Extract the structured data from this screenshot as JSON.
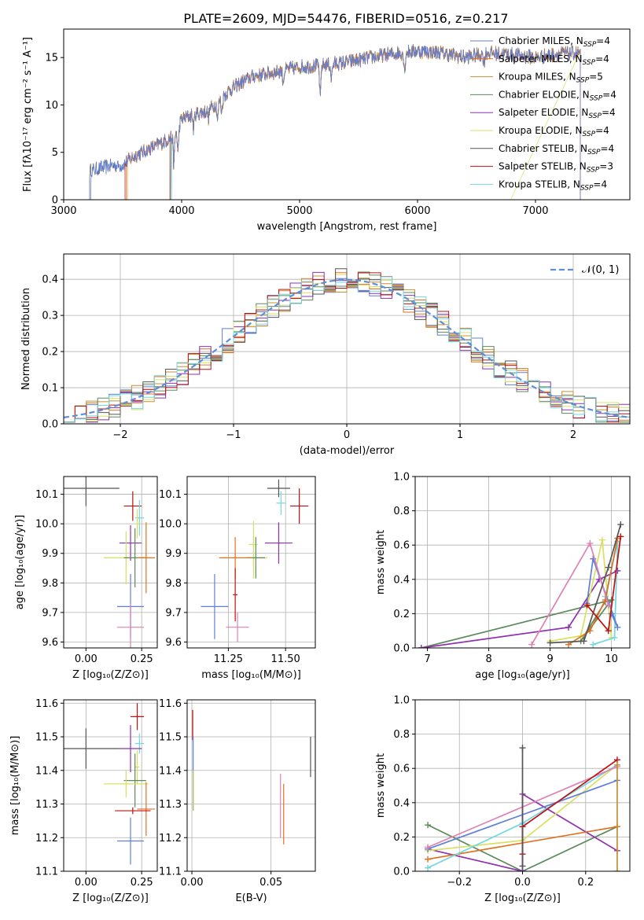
{
  "title": "PLATE=2609, MJD=54476, FIBERID=0516, z=0.217",
  "colors": {
    "cm": "#5f7fd8",
    "sm": "#e07020",
    "km": "#c89030",
    "ce": "#5b8a5b",
    "se": "#9030b0",
    "ke": "#d8e060",
    "cs": "#555555",
    "ss": "#c01010",
    "ks": "#70d8e0",
    "pink": "#e080b0",
    "gauss": "#5f8fd8"
  },
  "chart_data": [
    {
      "type": "line",
      "id": "spectrum",
      "xlabel": "wavelength [Angstrom, rest frame]",
      "ylabel": "Flux [fλ10⁻¹⁷ erg cm⁻² s⁻¹ A⁻¹]",
      "xlim": [
        3000,
        7800
      ],
      "ylim": [
        0,
        18
      ],
      "xticks": [
        3000,
        4000,
        5000,
        6000,
        7000
      ],
      "yticks": [
        0,
        5,
        10,
        15
      ],
      "xtick_labels": [
        "3000",
        "4000",
        "5000",
        "6000",
        "7000"
      ],
      "ytick_labels": [
        "0",
        "5",
        "10",
        "15"
      ],
      "legend": [
        {
          "label": "Chabrier MILES, N",
          "sub": "SSP",
          "tail": "=4",
          "color": "cm"
        },
        {
          "label": "Salpeter MILES, N",
          "sub": "SSP",
          "tail": "=4",
          "color": "sm"
        },
        {
          "label": "Kroupa MILES, N",
          "sub": "SSP",
          "tail": "=5",
          "color": "km"
        },
        {
          "label": "Chabrier ELODIE, N",
          "sub": "SSP",
          "tail": "=4",
          "color": "ce"
        },
        {
          "label": "Salpeter ELODIE, N",
          "sub": "SSP",
          "tail": "=4",
          "color": "se"
        },
        {
          "label": "Kroupa ELODIE, N",
          "sub": "SSP",
          "tail": "=4",
          "color": "ke"
        },
        {
          "label": "Chabrier STELIB, N",
          "sub": "SSP",
          "tail": "=4",
          "color": "cs"
        },
        {
          "label": "Salpeter STELIB, N",
          "sub": "SSP",
          "tail": "=3",
          "color": "ss"
        },
        {
          "label": "Kroupa STELIB, N",
          "sub": "SSP",
          "tail": "=4",
          "color": "ks"
        }
      ],
      "continuum": {
        "x": [
          3220,
          3300,
          3400,
          3500,
          3600,
          3700,
          3800,
          3900,
          3950,
          4000,
          4100,
          4200,
          4300,
          4400,
          4500,
          4600,
          4800,
          5000,
          5200,
          5400,
          5600,
          5800,
          6000,
          6200,
          6400,
          6600,
          6800,
          7000,
          7200,
          7380
        ],
        "y": [
          3.0,
          3.3,
          3.6,
          3.7,
          4.6,
          5.2,
          5.8,
          6.5,
          7.0,
          8.5,
          9.0,
          9.3,
          10.2,
          11.5,
          12.3,
          13.0,
          13.5,
          14.0,
          14.2,
          14.5,
          15.0,
          15.4,
          15.7,
          15.5,
          15.0,
          15.5,
          15.3,
          15.0,
          15.4,
          15.5
        ]
      },
      "start_x": {
        "cs": 3220,
        "cm": 3230,
        "ss": 3520,
        "sm": 3530,
        "km": 3540,
        "ce": 3900,
        "se": 3905,
        "ke": 3910,
        "ks": 3915
      }
    },
    {
      "type": "bar",
      "id": "residuals",
      "xlabel": "(data-model)/error",
      "ylabel": "Normed distribution",
      "xlim": [
        -2.5,
        2.5
      ],
      "ylim": [
        0,
        0.47
      ],
      "xticks": [
        -2,
        -1,
        0,
        1,
        2
      ],
      "yticks": [
        0,
        0.1,
        0.2,
        0.3,
        0.4
      ],
      "xtick_labels": [
        "−2",
        "−1",
        "0",
        "1",
        "2"
      ],
      "ytick_labels": [
        "0.0",
        "0.1",
        "0.2",
        "0.3",
        "0.4"
      ],
      "bin_width": 0.1,
      "legend_label": "𝒩(0, 1)",
      "series": [
        "cm",
        "sm",
        "km",
        "ce",
        "se",
        "ke",
        "cs",
        "ss",
        "ks"
      ]
    },
    {
      "type": "scatter",
      "id": "age_vs_Z",
      "xlabel": "Z [log₁₀(Z/Z⊙)]",
      "ylabel": "age  [log₁₀(age/yr)]",
      "xlim": [
        -0.1,
        0.32
      ],
      "ylim": [
        9.58,
        10.16
      ],
      "xticks": [
        0.0,
        0.25
      ],
      "xtick_labels": [
        "0.00",
        "0.25"
      ],
      "yticks": [
        9.6,
        9.7,
        9.8,
        9.9,
        10.0,
        10.1
      ],
      "ytick_labels": [
        "9.6",
        "9.7",
        "9.8",
        "9.9",
        "10.0",
        "10.1"
      ],
      "points": [
        {
          "c": "cs",
          "x": 0.0,
          "xe": 0.15,
          "y": 10.12,
          "ye": 0.06
        },
        {
          "c": "ss",
          "x": 0.21,
          "xe": 0.04,
          "y": 10.06,
          "ye": 0.05
        },
        {
          "c": "ks",
          "x": 0.24,
          "xe": 0.02,
          "y": 10.02,
          "ye": 0.06
        },
        {
          "c": "ke",
          "x": 0.23,
          "xe": 0.01,
          "y": 10.0,
          "ye": 0.05
        },
        {
          "c": "se",
          "x": 0.2,
          "xe": 0.05,
          "y": 9.935,
          "ye": 0.06
        },
        {
          "c": "ke",
          "x": 0.18,
          "xe": 0.1,
          "y": 9.885,
          "ye": 0.09
        },
        {
          "c": "ce",
          "x": 0.22,
          "xe": 0.05,
          "y": 9.885,
          "ye": 0.1
        },
        {
          "c": "sm",
          "x": 0.27,
          "xe": 0.04,
          "y": 9.885,
          "ye": 0.12
        },
        {
          "c": "cm",
          "x": 0.2,
          "xe": 0.06,
          "y": 9.72,
          "ye": 0.11
        },
        {
          "c": "pink",
          "x": 0.2,
          "xe": 0.06,
          "y": 9.65,
          "ye": 0.08
        }
      ]
    },
    {
      "type": "scatter",
      "id": "age_vs_mass",
      "xlabel": "mass [log₁₀(M/M⊙)]",
      "ylabel": "",
      "xlim": [
        11.07,
        11.63
      ],
      "ylim": [
        9.58,
        10.16
      ],
      "xticks": [
        11.25,
        11.5
      ],
      "xtick_labels": [
        "11.25",
        "11.50"
      ],
      "yticks": [
        9.6,
        9.7,
        9.8,
        9.9,
        10.0,
        10.1
      ],
      "ytick_labels": [
        "9.6",
        "9.7",
        "9.8",
        "9.9",
        "10.0",
        "10.1"
      ],
      "points": [
        {
          "c": "cs",
          "x": 11.47,
          "xe": 0.05,
          "y": 10.12,
          "ye": 0.03
        },
        {
          "c": "ks",
          "x": 11.48,
          "xe": 0.02,
          "y": 10.07,
          "ye": 0.04
        },
        {
          "c": "ss",
          "x": 11.56,
          "xe": 0.04,
          "y": 10.06,
          "ye": 0.06
        },
        {
          "c": "se",
          "x": 11.47,
          "xe": 0.06,
          "y": 9.935,
          "ye": 0.07
        },
        {
          "c": "ke",
          "x": 11.36,
          "xe": 0.02,
          "y": 9.93,
          "ye": 0.08
        },
        {
          "c": "ke",
          "x": 11.36,
          "xe": 0.06,
          "y": 9.885,
          "ye": 0.07
        },
        {
          "c": "ce",
          "x": 11.37,
          "xe": 0.04,
          "y": 9.885,
          "ye": 0.07
        },
        {
          "c": "sm",
          "x": 11.28,
          "xe": 0.07,
          "y": 9.885,
          "ye": 0.07
        },
        {
          "c": "ss",
          "x": 11.28,
          "xe": 0.01,
          "y": 9.76,
          "ye": 0.09
        },
        {
          "c": "cm",
          "x": 11.19,
          "xe": 0.06,
          "y": 9.72,
          "ye": 0.11
        },
        {
          "c": "pink",
          "x": 11.29,
          "xe": 0.05,
          "y": 9.65,
          "ye": 0.05
        }
      ]
    },
    {
      "type": "line",
      "id": "massweight_vs_age",
      "xlabel": "age  [log₁₀(age/yr)]",
      "ylabel": "mass weight",
      "xlim": [
        6.8,
        10.3
      ],
      "ylim": [
        0,
        1.0
      ],
      "xticks": [
        7,
        8,
        9,
        10
      ],
      "xtick_labels": [
        "7",
        "8",
        "9",
        "10"
      ],
      "yticks": [
        0,
        0.2,
        0.4,
        0.6,
        0.8,
        1.0
      ],
      "ytick_labels": [
        "0.0",
        "0.2",
        "0.4",
        "0.6",
        "0.8",
        "1.0"
      ],
      "series": [
        {
          "c": "ce",
          "x": [
            6.9,
            10.0,
            9.5,
            9.9
          ],
          "y": [
            0.0,
            0.28,
            0.04,
            0.27
          ]
        },
        {
          "c": "se",
          "x": [
            6.9,
            9.3,
            9.8,
            10.1
          ],
          "y": [
            0.0,
            0.12,
            0.4,
            0.45
          ]
        },
        {
          "c": "ke",
          "x": [
            9.0,
            9.5,
            9.85,
            10.0
          ],
          "y": [
            0.04,
            0.07,
            0.63,
            0.06
          ]
        },
        {
          "c": "ks",
          "x": [
            9.7,
            10.05,
            10.1,
            9.9
          ],
          "y": [
            0.02,
            0.06,
            0.62,
            0.3
          ]
        },
        {
          "c": "cm",
          "x": [
            9.6,
            9.7,
            10.1,
            10.0
          ],
          "y": [
            0.26,
            0.52,
            0.12,
            0.2
          ]
        },
        {
          "c": "sm",
          "x": [
            9.3,
            9.65,
            9.9,
            10.1
          ],
          "y": [
            0.02,
            0.1,
            0.28,
            0.64
          ]
        },
        {
          "c": "pink",
          "x": [
            8.7,
            9.65,
            9.95
          ],
          "y": [
            0.02,
            0.61,
            0.25
          ]
        },
        {
          "c": "cs",
          "x": [
            9.0,
            9.55,
            9.95,
            10.15
          ],
          "y": [
            0.03,
            0.04,
            0.47,
            0.72
          ]
        },
        {
          "c": "ss",
          "x": [
            9.6,
            9.95,
            10.15
          ],
          "y": [
            0.25,
            0.1,
            0.65
          ]
        }
      ]
    },
    {
      "type": "scatter",
      "id": "mass_vs_Z",
      "xlabel": "Z [log₁₀(Z/Z⊙)]",
      "ylabel": "mass [log₁₀(M/M⊙)]",
      "xlim": [
        -0.1,
        0.32
      ],
      "ylim": [
        11.1,
        11.61
      ],
      "xticks": [
        0.0,
        0.25
      ],
      "xtick_labels": [
        "0.00",
        "0.25"
      ],
      "yticks": [
        11.1,
        11.2,
        11.3,
        11.4,
        11.5,
        11.6
      ],
      "ytick_labels": [
        "11.1",
        "11.2",
        "11.3",
        "11.4",
        "11.5",
        "11.6"
      ],
      "points": [
        {
          "c": "ss",
          "x": 0.23,
          "xe": 0.03,
          "y": 11.56,
          "ye": 0.04
        },
        {
          "c": "ks",
          "x": 0.24,
          "xe": 0.02,
          "y": 11.48,
          "ye": 0.03
        },
        {
          "c": "cs",
          "x": 0.0,
          "xe": 0.15,
          "y": 11.465,
          "ye": 0.06
        },
        {
          "c": "se",
          "x": 0.2,
          "xe": 0.05,
          "y": 11.465,
          "ye": 0.07
        },
        {
          "c": "ke",
          "x": 0.23,
          "xe": 0.01,
          "y": 11.41,
          "ye": 0.05
        },
        {
          "c": "ce",
          "x": 0.22,
          "xe": 0.05,
          "y": 11.37,
          "ye": 0.08
        },
        {
          "c": "ke",
          "x": 0.18,
          "xe": 0.1,
          "y": 11.36,
          "ye": 0.04
        },
        {
          "c": "sm",
          "x": 0.27,
          "xe": 0.04,
          "y": 11.285,
          "ye": 0.08
        },
        {
          "c": "ss",
          "x": 0.21,
          "xe": 0.08,
          "y": 11.28,
          "ye": 0.01
        },
        {
          "c": "cm",
          "x": 0.2,
          "xe": 0.06,
          "y": 11.19,
          "ye": 0.07
        }
      ]
    },
    {
      "type": "scatter",
      "id": "mass_vs_EBV",
      "xlabel": "E(B-V)",
      "ylabel": "",
      "xlim": [
        -0.003,
        0.078
      ],
      "ylim": [
        11.1,
        11.61
      ],
      "xticks": [
        0.0,
        0.05
      ],
      "xtick_labels": [
        "0.00",
        "0.05"
      ],
      "yticks": [
        11.1,
        11.2,
        11.3,
        11.4,
        11.5,
        11.6
      ],
      "ytick_labels": [
        "11.1",
        "11.2",
        "11.3",
        "11.4",
        "11.5",
        "11.6"
      ],
      "vlines": [
        {
          "c": "ss",
          "x": 0.0005,
          "y0": 11.49,
          "y1": 11.58
        },
        {
          "c": "cm",
          "x": 0.0008,
          "y0": 11.28,
          "y1": 11.5
        },
        {
          "c": "ke",
          "x": 0.001,
          "y0": 11.28,
          "y1": 11.4
        },
        {
          "c": "pink",
          "x": 0.056,
          "y0": 11.2,
          "y1": 11.39
        },
        {
          "c": "sm",
          "x": 0.058,
          "y0": 11.18,
          "y1": 11.36
        },
        {
          "c": "cs",
          "x": 0.075,
          "y0": 11.38,
          "y1": 11.5
        }
      ]
    },
    {
      "type": "line",
      "id": "massweight_vs_Z",
      "xlabel": "Z [log₁₀(Z/Z⊙)]",
      "ylabel": "mass weight",
      "xlim": [
        -0.34,
        0.34
      ],
      "ylim": [
        0,
        1.0
      ],
      "xticks": [
        -0.2,
        0.0,
        0.2
      ],
      "xtick_labels": [
        "−0.2",
        "0.0",
        "0.2"
      ],
      "yticks": [
        0,
        0.2,
        0.4,
        0.6,
        0.8,
        1.0
      ],
      "ytick_labels": [
        "0.0",
        "0.2",
        "0.4",
        "0.6",
        "0.8",
        "1.0"
      ],
      "series": [
        {
          "c": "ce",
          "x": [
            -0.3,
            0.0,
            0.3
          ],
          "y": [
            0.27,
            0.0,
            0.26
          ]
        },
        {
          "c": "se",
          "x": [
            -0.3,
            0.0,
            0.0,
            0.3
          ],
          "y": [
            0.13,
            0.0,
            0.45,
            0.12
          ]
        },
        {
          "c": "sm",
          "x": [
            -0.3,
            0.3
          ],
          "y": [
            0.07,
            0.26
          ]
        },
        {
          "c": "ke",
          "x": [
            -0.3,
            0.0,
            0.3
          ],
          "y": [
            0.12,
            0.18,
            0.62
          ]
        },
        {
          "c": "ks",
          "x": [
            -0.3,
            0.0,
            0.3
          ],
          "y": [
            0.02,
            0.28,
            0.62
          ]
        },
        {
          "c": "cm",
          "x": [
            -0.3,
            0.3
          ],
          "y": [
            0.13,
            0.53
          ]
        },
        {
          "c": "pink",
          "x": [
            -0.3,
            0.3
          ],
          "y": [
            0.14,
            0.61
          ]
        },
        {
          "c": "ss",
          "x": [
            0.0,
            0.0,
            0.3
          ],
          "y": [
            0.1,
            0.26,
            0.65
          ]
        },
        {
          "c": "cs",
          "x": [
            0.0,
            0.0
          ],
          "y": [
            0.03,
            0.72
          ]
        },
        {
          "c": "km",
          "x": [
            0.3,
            0.3
          ],
          "y": [
            0.0,
            0.62
          ]
        }
      ]
    }
  ]
}
